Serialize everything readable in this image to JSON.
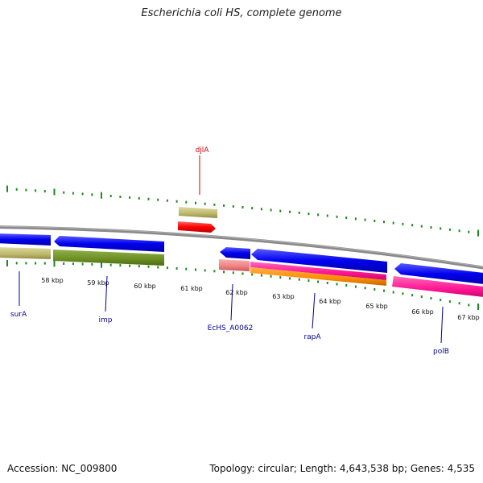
{
  "title": "Escherichia coli HS, complete genome",
  "footer": {
    "accession": "Accession: NC_009800",
    "summary": "Topology: circular; Length: 4,643,538 bp; Genes: 4,535"
  },
  "scale": {
    "ticks": [
      "58 kbp",
      "59 kbp",
      "60 kbp",
      "61 kbp",
      "62 kbp",
      "63 kbp",
      "64 kbp",
      "65 kbp",
      "66 kbp",
      "67 kbp"
    ]
  },
  "gene_labels": {
    "djlA": "djlA",
    "surA": "surA",
    "imp": "imp",
    "EcHS_A0062": "EcHS_A0062",
    "rapA": "rapA",
    "polB": "polB"
  },
  "colors": {
    "backbone": "#888888",
    "tick": "#1a8a1a",
    "cds_forward": "#ff0000",
    "cds_reverse": "#0000ee",
    "cog_tan": "#bdb76b",
    "cog_olive": "#6b8e23",
    "cog_salmon": "#f08080",
    "cog_magenta": "#ff1493",
    "cog_orange": "#ff8c00",
    "label_forward": "#cc0000",
    "label_reverse": "#000099"
  }
}
